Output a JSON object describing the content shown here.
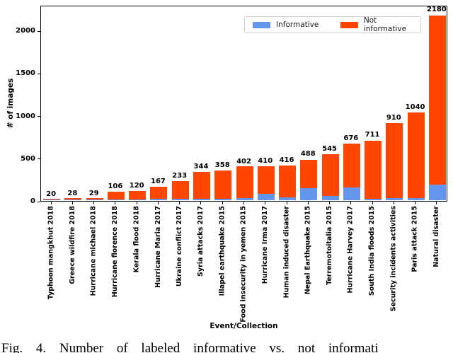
{
  "figure": {
    "caption": "Fig. 4.   Number of labeled informative vs. not informati"
  },
  "chart_data": {
    "type": "bar",
    "stacked": true,
    "title": "",
    "xlabel": "Event/Collection",
    "ylabel": "# of images",
    "ylim": [
      0,
      2300
    ],
    "yticks": [
      0,
      500,
      1000,
      1500,
      2000
    ],
    "grid": false,
    "legend_position": "upper center",
    "categories": [
      "Typhoon mangkhut 2018",
      "Greece wildfire 2018",
      "Hurricane michael 2018",
      "Hurricane florence 2018",
      "Kerala flood 2018",
      "Hurricane Maria 2017",
      "Ukraine conflict 2017",
      "Syria attacks 2017",
      "Illapel earthquake 2015",
      "Food insecurity in yemen 2015",
      "Hurricane Irma 2017",
      "Human induced disaster",
      "Nepal Earthquake 2015",
      "Terremotoitalia 2015",
      "Hurricane Harvey 2017",
      "South India floods 2015",
      "Security incidents activities",
      "Paris attack 2015",
      "Natural disaster"
    ],
    "series": [
      {
        "name": "Informative",
        "color": "#6495ED",
        "values": [
          5,
          5,
          5,
          10,
          12,
          17,
          17,
          20,
          17,
          22,
          75,
          30,
          145,
          50,
          150,
          20,
          25,
          25,
          185
        ]
      },
      {
        "name": "Not informative",
        "color": "#FF4500",
        "values": [
          15,
          23,
          24,
          96,
          108,
          150,
          216,
          324,
          341,
          380,
          335,
          386,
          343,
          495,
          526,
          691,
          885,
          1015,
          1995
        ]
      }
    ],
    "totals": [
      20,
      28,
      29,
      106,
      120,
      167,
      233,
      344,
      358,
      402,
      410,
      416,
      488,
      545,
      676,
      711,
      910,
      1040,
      2180
    ]
  }
}
